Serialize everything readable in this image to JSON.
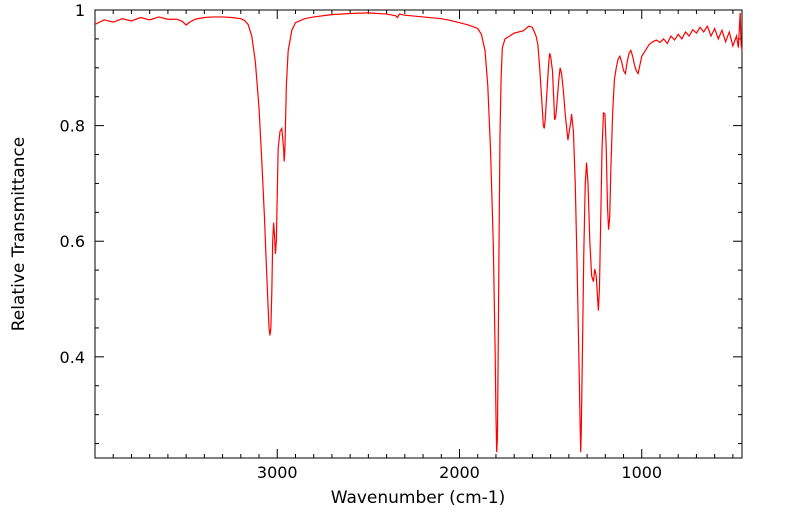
{
  "chart_data": {
    "type": "line",
    "title": "",
    "xlabel": "Wavenumber (cm-1)",
    "ylabel": "Relative Transmittance",
    "xlim": [
      4000,
      450
    ],
    "ylim": [
      0.225,
      1.0
    ],
    "x_reversed": true,
    "grid": false,
    "legend": "none",
    "x_ticks": [
      {
        "value": 3000,
        "label": "3000"
      },
      {
        "value": 2000,
        "label": "2000"
      },
      {
        "value": 1000,
        "label": "1000"
      }
    ],
    "y_ticks": [
      {
        "value": 1.0,
        "label": "1"
      },
      {
        "value": 0.8,
        "label": "0.8"
      },
      {
        "value": 0.6,
        "label": "0.6"
      },
      {
        "value": 0.4,
        "label": "0.4"
      }
    ],
    "series": [
      {
        "color": "#ff0000",
        "points": [
          [
            4000,
            0.975
          ],
          [
            3950,
            0.983
          ],
          [
            3900,
            0.979
          ],
          [
            3850,
            0.985
          ],
          [
            3800,
            0.981
          ],
          [
            3750,
            0.987
          ],
          [
            3700,
            0.983
          ],
          [
            3650,
            0.988
          ],
          [
            3600,
            0.984
          ],
          [
            3550,
            0.984
          ],
          [
            3520,
            0.98
          ],
          [
            3500,
            0.974
          ],
          [
            3480,
            0.979
          ],
          [
            3450,
            0.984
          ],
          [
            3400,
            0.987
          ],
          [
            3350,
            0.988
          ],
          [
            3300,
            0.988
          ],
          [
            3250,
            0.987
          ],
          [
            3200,
            0.985
          ],
          [
            3180,
            0.982
          ],
          [
            3160,
            0.975
          ],
          [
            3140,
            0.955
          ],
          [
            3120,
            0.91
          ],
          [
            3100,
            0.83
          ],
          [
            3085,
            0.74
          ],
          [
            3070,
            0.64
          ],
          [
            3060,
            0.56
          ],
          [
            3050,
            0.485
          ],
          [
            3045,
            0.45
          ],
          [
            3040,
            0.437
          ],
          [
            3035,
            0.45
          ],
          [
            3030,
            0.51
          ],
          [
            3025,
            0.6
          ],
          [
            3020,
            0.632
          ],
          [
            3015,
            0.61
          ],
          [
            3010,
            0.578
          ],
          [
            3005,
            0.6
          ],
          [
            3000,
            0.68
          ],
          [
            2995,
            0.76
          ],
          [
            2985,
            0.79
          ],
          [
            2975,
            0.795
          ],
          [
            2965,
            0.76
          ],
          [
            2962,
            0.738
          ],
          [
            2958,
            0.76
          ],
          [
            2950,
            0.87
          ],
          [
            2940,
            0.93
          ],
          [
            2920,
            0.965
          ],
          [
            2900,
            0.978
          ],
          [
            2850,
            0.985
          ],
          [
            2800,
            0.988
          ],
          [
            2700,
            0.992
          ],
          [
            2600,
            0.994
          ],
          [
            2500,
            0.995
          ],
          [
            2400,
            0.993
          ],
          [
            2350,
            0.99
          ],
          [
            2340,
            0.987
          ],
          [
            2330,
            0.993
          ],
          [
            2300,
            0.991
          ],
          [
            2200,
            0.988
          ],
          [
            2100,
            0.985
          ],
          [
            2050,
            0.982
          ],
          [
            2000,
            0.978
          ],
          [
            1950,
            0.974
          ],
          [
            1900,
            0.968
          ],
          [
            1880,
            0.958
          ],
          [
            1860,
            0.93
          ],
          [
            1845,
            0.87
          ],
          [
            1830,
            0.76
          ],
          [
            1815,
            0.6
          ],
          [
            1805,
            0.42
          ],
          [
            1800,
            0.3
          ],
          [
            1796,
            0.235
          ],
          [
            1792,
            0.26
          ],
          [
            1788,
            0.4
          ],
          [
            1783,
            0.6
          ],
          [
            1778,
            0.78
          ],
          [
            1772,
            0.88
          ],
          [
            1765,
            0.935
          ],
          [
            1750,
            0.95
          ],
          [
            1700,
            0.96
          ],
          [
            1650,
            0.964
          ],
          [
            1620,
            0.972
          ],
          [
            1600,
            0.97
          ],
          [
            1580,
            0.955
          ],
          [
            1570,
            0.94
          ],
          [
            1560,
            0.9
          ],
          [
            1550,
            0.85
          ],
          [
            1540,
            0.8
          ],
          [
            1535,
            0.795
          ],
          [
            1530,
            0.81
          ],
          [
            1520,
            0.86
          ],
          [
            1510,
            0.91
          ],
          [
            1505,
            0.925
          ],
          [
            1500,
            0.92
          ],
          [
            1490,
            0.895
          ],
          [
            1482,
            0.84
          ],
          [
            1478,
            0.81
          ],
          [
            1472,
            0.815
          ],
          [
            1465,
            0.84
          ],
          [
            1455,
            0.88
          ],
          [
            1448,
            0.9
          ],
          [
            1440,
            0.89
          ],
          [
            1430,
            0.86
          ],
          [
            1420,
            0.82
          ],
          [
            1410,
            0.79
          ],
          [
            1405,
            0.775
          ],
          [
            1398,
            0.79
          ],
          [
            1390,
            0.805
          ],
          [
            1385,
            0.82
          ],
          [
            1375,
            0.79
          ],
          [
            1365,
            0.7
          ],
          [
            1355,
            0.56
          ],
          [
            1345,
            0.4
          ],
          [
            1338,
            0.28
          ],
          [
            1335,
            0.235
          ],
          [
            1332,
            0.27
          ],
          [
            1325,
            0.42
          ],
          [
            1318,
            0.58
          ],
          [
            1310,
            0.7
          ],
          [
            1303,
            0.736
          ],
          [
            1295,
            0.7
          ],
          [
            1285,
            0.6
          ],
          [
            1275,
            0.54
          ],
          [
            1265,
            0.53
          ],
          [
            1258,
            0.552
          ],
          [
            1250,
            0.54
          ],
          [
            1243,
            0.505
          ],
          [
            1238,
            0.48
          ],
          [
            1232,
            0.52
          ],
          [
            1225,
            0.64
          ],
          [
            1218,
            0.76
          ],
          [
            1210,
            0.822
          ],
          [
            1202,
            0.82
          ],
          [
            1195,
            0.76
          ],
          [
            1188,
            0.66
          ],
          [
            1182,
            0.62
          ],
          [
            1176,
            0.64
          ],
          [
            1170,
            0.72
          ],
          [
            1160,
            0.82
          ],
          [
            1150,
            0.88
          ],
          [
            1140,
            0.9
          ],
          [
            1130,
            0.915
          ],
          [
            1120,
            0.92
          ],
          [
            1110,
            0.91
          ],
          [
            1100,
            0.895
          ],
          [
            1090,
            0.89
          ],
          [
            1080,
            0.91
          ],
          [
            1070,
            0.925
          ],
          [
            1060,
            0.93
          ],
          [
            1050,
            0.92
          ],
          [
            1040,
            0.905
          ],
          [
            1030,
            0.895
          ],
          [
            1020,
            0.89
          ],
          [
            1010,
            0.905
          ],
          [
            1000,
            0.92
          ],
          [
            980,
            0.93
          ],
          [
            960,
            0.94
          ],
          [
            940,
            0.945
          ],
          [
            920,
            0.948
          ],
          [
            900,
            0.944
          ],
          [
            880,
            0.95
          ],
          [
            860,
            0.942
          ],
          [
            840,
            0.955
          ],
          [
            820,
            0.948
          ],
          [
            800,
            0.958
          ],
          [
            780,
            0.95
          ],
          [
            760,
            0.962
          ],
          [
            740,
            0.955
          ],
          [
            720,
            0.966
          ],
          [
            700,
            0.96
          ],
          [
            680,
            0.97
          ],
          [
            660,
            0.962
          ],
          [
            640,
            0.972
          ],
          [
            620,
            0.955
          ],
          [
            600,
            0.968
          ],
          [
            580,
            0.95
          ],
          [
            560,
            0.965
          ],
          [
            540,
            0.945
          ],
          [
            520,
            0.962
          ],
          [
            500,
            0.938
          ],
          [
            480,
            0.955
          ],
          [
            470,
            0.935
          ],
          [
            460,
            0.995
          ],
          [
            455,
            0.94
          ],
          [
            450,
            0.93
          ]
        ]
      }
    ]
  }
}
